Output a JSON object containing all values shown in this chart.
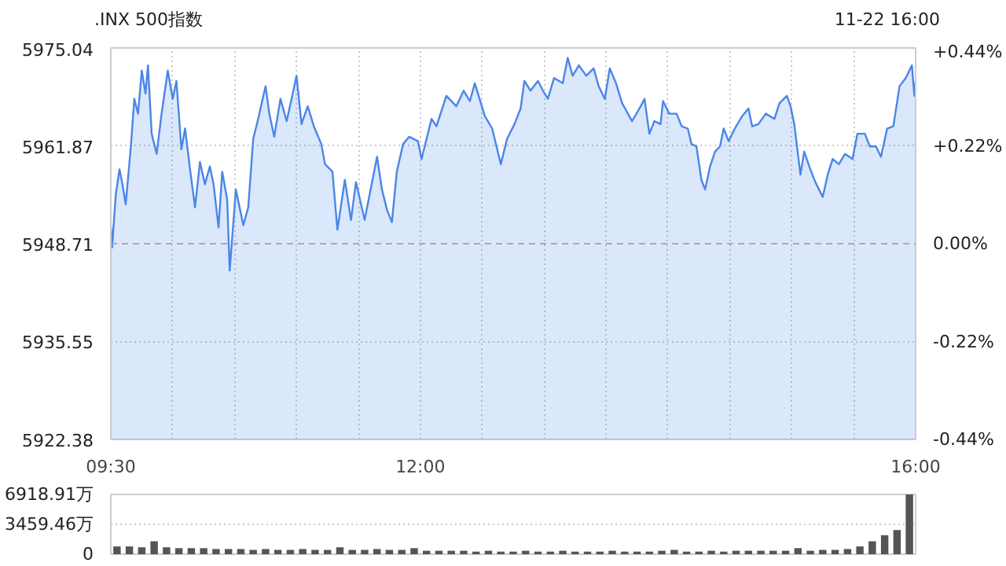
{
  "chart_data": [
    {
      "type": "area",
      "title": ".INX 500指数",
      "annotations": [
        "11-22 16:00"
      ],
      "x": [
        9.5,
        9.51,
        9.54,
        9.57,
        9.59,
        9.62,
        9.66,
        9.69,
        9.72,
        9.75,
        9.78,
        9.8,
        9.83,
        9.87,
        9.91,
        9.96,
        10.0,
        10.03,
        10.07,
        10.1,
        10.14,
        10.18,
        10.22,
        10.26,
        10.3,
        10.33,
        10.37,
        10.4,
        10.44,
        10.46,
        10.51,
        10.57,
        10.61,
        10.65,
        10.69,
        10.75,
        10.78,
        10.82,
        10.87,
        10.92,
        10.96,
        11.0,
        11.04,
        11.09,
        11.14,
        11.2,
        11.23,
        11.29,
        11.33,
        11.39,
        11.44,
        11.48,
        11.55,
        11.59,
        11.65,
        11.69,
        11.73,
        11.77,
        11.81,
        11.86,
        11.91,
        11.98,
        12.01,
        12.09,
        12.13,
        12.21,
        12.29,
        12.35,
        12.4,
        12.44,
        12.52,
        12.58,
        12.65,
        12.7,
        12.76,
        12.81,
        12.84,
        12.89,
        12.95,
        12.99,
        13.03,
        13.08,
        13.15,
        13.19,
        13.23,
        13.28,
        13.34,
        13.4,
        13.44,
        13.49,
        13.53,
        13.58,
        13.63,
        13.71,
        13.78,
        13.81,
        13.85,
        13.89,
        13.94,
        13.96,
        14.01,
        14.07,
        14.11,
        14.16,
        14.19,
        14.23,
        14.27,
        14.3,
        14.34,
        14.38,
        14.42,
        14.45,
        14.49,
        14.54,
        14.6,
        14.65,
        14.68,
        14.73,
        14.79,
        14.86,
        14.9,
        14.96,
        14.99,
        15.02,
        15.07,
        15.1,
        15.15,
        15.19,
        15.25,
        15.29,
        15.33,
        15.38,
        15.43,
        15.49,
        15.53,
        15.59,
        15.63,
        15.68,
        15.72,
        15.77,
        15.82,
        15.87,
        15.92,
        15.97,
        15.99,
        16.0
      ],
      "values": [
        5951.2,
        5948.2,
        5955.3,
        5958.7,
        5957.1,
        5954.0,
        5961.4,
        5968.2,
        5966.2,
        5972.0,
        5968.9,
        5972.7,
        5963.5,
        5960.8,
        5966.2,
        5972.0,
        5968.2,
        5970.6,
        5961.4,
        5964.2,
        5958.7,
        5953.6,
        5959.7,
        5956.7,
        5959.1,
        5956.7,
        5950.9,
        5958.4,
        5954.6,
        5945.1,
        5956.0,
        5951.2,
        5953.6,
        5962.8,
        5965.5,
        5969.9,
        5966.2,
        5963.1,
        5968.2,
        5965.2,
        5968.2,
        5971.3,
        5964.8,
        5967.2,
        5964.5,
        5962.1,
        5959.4,
        5958.4,
        5950.6,
        5957.3,
        5951.9,
        5957.0,
        5951.9,
        5955.3,
        5960.4,
        5956.0,
        5953.3,
        5951.6,
        5958.4,
        5962.1,
        5963.1,
        5962.5,
        5960.1,
        5965.5,
        5964.5,
        5968.6,
        5967.2,
        5969.3,
        5967.9,
        5970.3,
        5965.9,
        5964.2,
        5959.4,
        5962.8,
        5964.8,
        5966.9,
        5970.6,
        5969.3,
        5970.6,
        5969.3,
        5968.2,
        5971.0,
        5970.3,
        5973.7,
        5971.3,
        5972.7,
        5971.3,
        5972.3,
        5969.9,
        5968.2,
        5972.3,
        5970.3,
        5967.6,
        5965.2,
        5967.2,
        5968.2,
        5963.5,
        5965.2,
        5964.8,
        5967.9,
        5966.2,
        5966.2,
        5964.5,
        5964.2,
        5962.1,
        5961.8,
        5957.3,
        5956.0,
        5959.1,
        5961.1,
        5961.8,
        5964.2,
        5962.5,
        5964.2,
        5965.9,
        5966.9,
        5964.5,
        5964.8,
        5966.2,
        5965.5,
        5967.6,
        5968.6,
        5967.2,
        5964.8,
        5958.0,
        5961.1,
        5958.7,
        5957.0,
        5955.0,
        5958.0,
        5960.1,
        5959.4,
        5960.8,
        5960.1,
        5963.5,
        5963.5,
        5961.8,
        5961.8,
        5960.4,
        5964.2,
        5964.5,
        5969.9,
        5971.0,
        5972.7,
        5968.6,
        5970.6
      ],
      "color": "#4a86e8",
      "xlim": [
        9.5,
        16.0
      ],
      "xticks": [
        {
          "value": 9.5,
          "label": "09:30"
        },
        {
          "value": 10,
          "label": null
        },
        {
          "value": 10.5,
          "label": null
        },
        {
          "value": 11,
          "label": null
        },
        {
          "value": 11.5,
          "label": null
        },
        {
          "value": 12,
          "label": "12:00"
        },
        {
          "value": 12.5,
          "label": null
        },
        {
          "value": 13,
          "label": null
        },
        {
          "value": 13.5,
          "label": null
        },
        {
          "value": 14,
          "label": null
        },
        {
          "value": 14.5,
          "label": null
        },
        {
          "value": 15,
          "label": null
        },
        {
          "value": 15.5,
          "label": null
        },
        {
          "value": 16,
          "label": "16:00"
        }
      ],
      "ylim": [
        5922.38,
        5975.04
      ],
      "yticks": [
        5922.38,
        5935.55,
        5948.71,
        5961.87,
        5975.04
      ],
      "y2lim": [
        -0.44,
        0.44
      ],
      "y2ticks": [
        {
          "value": -0.44,
          "label": "-0.44%"
        },
        {
          "value": -0.22,
          "label": "-0.22%"
        },
        {
          "value": 0,
          "label": "0.00%"
        },
        {
          "value": 0.22,
          "label": "+0.22%"
        },
        {
          "value": 0.44,
          "label": "+0.44%"
        }
      ],
      "ref_lines": [
        {
          "axis": "y",
          "value": 5948.71,
          "color": "#aaaaaa",
          "line_style": "dashed"
        }
      ],
      "grid": true
    },
    {
      "type": "bar",
      "categories": [
        null,
        null,
        null,
        null,
        null,
        null,
        null,
        null,
        null,
        null,
        null,
        null,
        null,
        null,
        null,
        null,
        null,
        null,
        null,
        null,
        null,
        null,
        null,
        null,
        null,
        null,
        null,
        null,
        null,
        null,
        null,
        null,
        null,
        null,
        null,
        null,
        null,
        null,
        null,
        null,
        null,
        null,
        null,
        null,
        null,
        null,
        null,
        null,
        null,
        null,
        null,
        null,
        null,
        null,
        null,
        null,
        null,
        null,
        null,
        null,
        null,
        null,
        null,
        null,
        null
      ],
      "values": [
        900,
        900,
        800,
        1500,
        800,
        700,
        700,
        700,
        600,
        600,
        600,
        500,
        600,
        500,
        500,
        600,
        500,
        500,
        800,
        500,
        500,
        600,
        500,
        500,
        700,
        400,
        400,
        400,
        400,
        300,
        400,
        300,
        300,
        400,
        300,
        300,
        400,
        300,
        300,
        300,
        400,
        300,
        300,
        300,
        400,
        500,
        300,
        300,
        400,
        300,
        400,
        400,
        400,
        400,
        400,
        700,
        400,
        500,
        500,
        600,
        900,
        1500,
        2200,
        2800,
        6918.91
      ],
      "color": "#555555",
      "ylim": [
        0,
        6918.91
      ],
      "yticks": [
        0,
        {
          "value": 3459.46,
          "label": "3459.46万"
        },
        {
          "value": 6918.91,
          "label": "6918.91万"
        }
      ],
      "tick_labels": "y",
      "grid": "y"
    }
  ]
}
